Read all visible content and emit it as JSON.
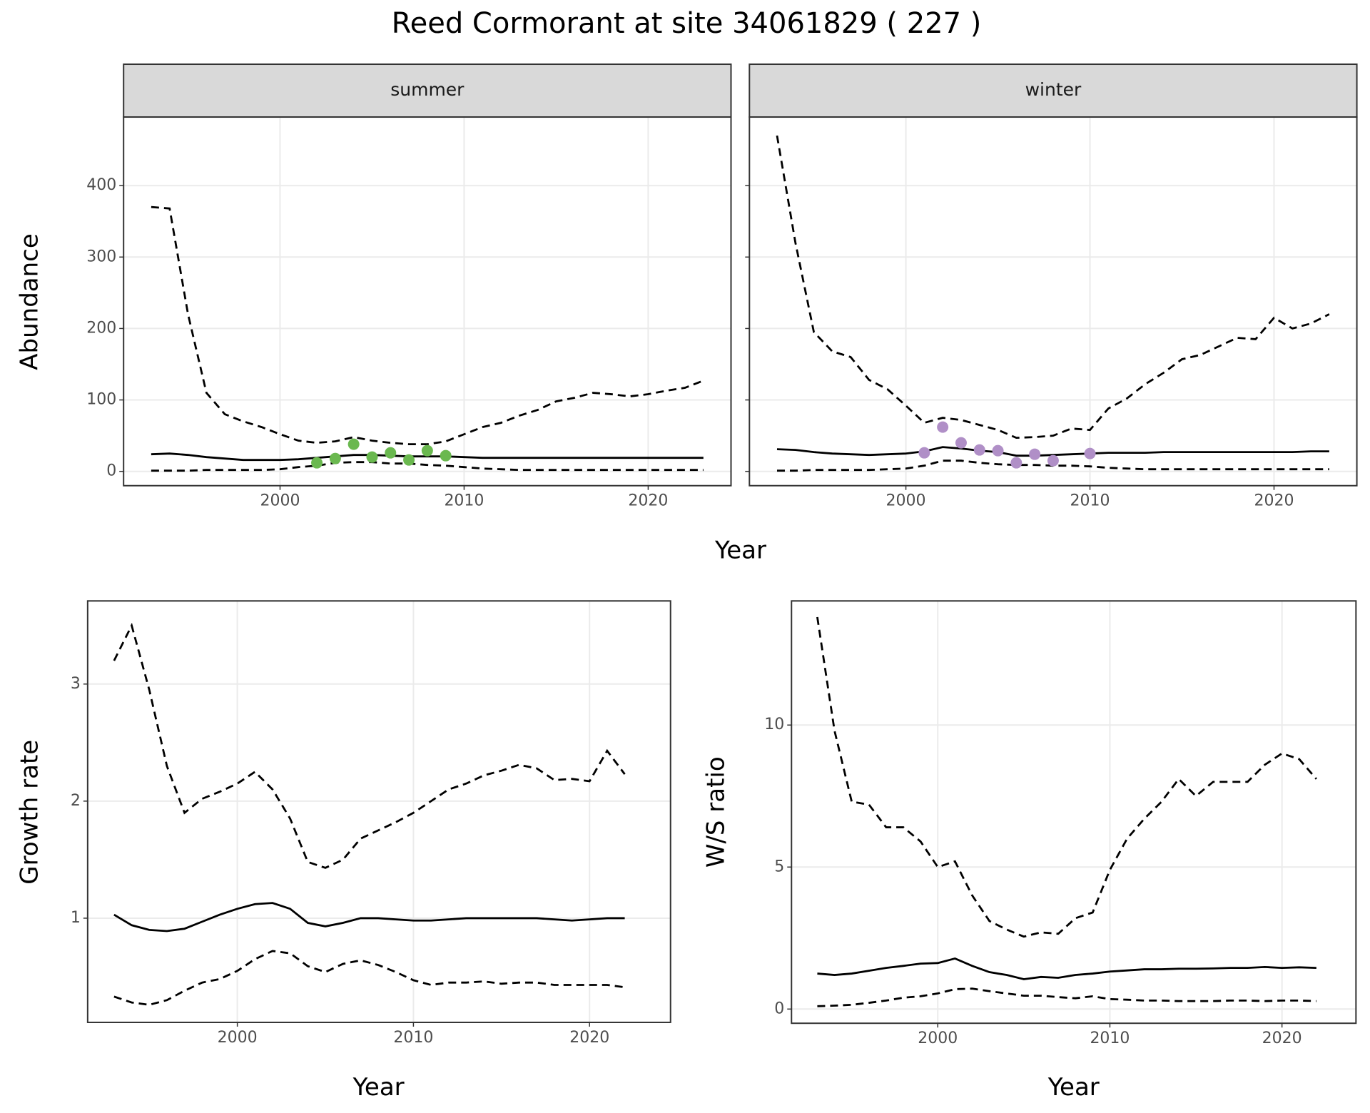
{
  "title": "Reed Cormorant at site 34061829 ( 227 )",
  "chart_data": [
    {
      "type": "line",
      "strip": "summer",
      "ylabel": "Abundance",
      "xlabel": "Year",
      "grid": true,
      "xlim": [
        1991.5,
        2024.5
      ],
      "xticks": [
        2000,
        2010,
        2020
      ],
      "ylim": [
        -20,
        496
      ],
      "yticks": [
        0,
        100,
        200,
        300,
        400
      ],
      "x": [
        1993,
        1994,
        1995,
        1996,
        1997,
        1998,
        1999,
        2000,
        2001,
        2002,
        2003,
        2004,
        2005,
        2006,
        2007,
        2008,
        2009,
        2010,
        2011,
        2012,
        2013,
        2014,
        2015,
        2016,
        2017,
        2018,
        2019,
        2020,
        2021,
        2022,
        2023
      ],
      "series": [
        {
          "color": "#000000",
          "dashed": false,
          "values": [
            24,
            25,
            23,
            20,
            18,
            16,
            16,
            16,
            17,
            19,
            21,
            23,
            23,
            22,
            21,
            21,
            21,
            20,
            19,
            19,
            19,
            19,
            19,
            19,
            19,
            19,
            19,
            19,
            19,
            19,
            19
          ]
        },
        {
          "color": "#000000",
          "dashed": true,
          "values": [
            370,
            368,
            220,
            110,
            80,
            70,
            62,
            52,
            43,
            40,
            42,
            48,
            43,
            40,
            38,
            38,
            42,
            52,
            62,
            68,
            78,
            86,
            98,
            103,
            110,
            108,
            105,
            108,
            113,
            117,
            127
          ]
        },
        {
          "color": "#000000",
          "dashed": true,
          "values": [
            1,
            1,
            1,
            2,
            2,
            2,
            2,
            3,
            6,
            8,
            12,
            13,
            13,
            11,
            11,
            9,
            8,
            6,
            4,
            3,
            2,
            2,
            2,
            2,
            2,
            2,
            2,
            2,
            2,
            2,
            2
          ]
        }
      ],
      "points": {
        "color": "#6ab84f",
        "x": [
          2002,
          2003,
          2004,
          2005,
          2006,
          2007,
          2008,
          2009
        ],
        "values": [
          12,
          18,
          38,
          20,
          26,
          16,
          29,
          22
        ]
      }
    },
    {
      "type": "line",
      "strip": "winter",
      "grid": true,
      "ytick_labels": false,
      "xlim": [
        1991.5,
        2024.5
      ],
      "xticks": [
        2000,
        2010,
        2020
      ],
      "ylim": [
        -20,
        496
      ],
      "yticks": [
        0,
        100,
        200,
        300,
        400
      ],
      "x": [
        1993,
        1994,
        1995,
        1996,
        1997,
        1998,
        1999,
        2000,
        2001,
        2002,
        2003,
        2004,
        2005,
        2006,
        2007,
        2008,
        2009,
        2010,
        2011,
        2012,
        2013,
        2014,
        2015,
        2016,
        2017,
        2018,
        2019,
        2020,
        2021,
        2022,
        2023
      ],
      "series": [
        {
          "color": "#000000",
          "dashed": false,
          "values": [
            31,
            30,
            27,
            25,
            24,
            23,
            24,
            25,
            28,
            34,
            32,
            29,
            27,
            22,
            22,
            23,
            24,
            25,
            26,
            26,
            26,
            27,
            27,
            27,
            27,
            27,
            27,
            27,
            27,
            28,
            28
          ]
        },
        {
          "color": "#000000",
          "dashed": true,
          "values": [
            470,
            320,
            195,
            168,
            160,
            128,
            115,
            92,
            68,
            75,
            72,
            65,
            58,
            47,
            48,
            50,
            60,
            58,
            88,
            102,
            122,
            138,
            157,
            163,
            175,
            187,
            185,
            215,
            200,
            207,
            220
          ]
        },
        {
          "color": "#000000",
          "dashed": true,
          "values": [
            1,
            1,
            2,
            2,
            2,
            2,
            3,
            4,
            8,
            15,
            15,
            12,
            10,
            9,
            9,
            8,
            8,
            7,
            5,
            4,
            3,
            3,
            3,
            3,
            3,
            3,
            3,
            3,
            3,
            3,
            3
          ]
        }
      ],
      "points": {
        "color": "#b08fc7",
        "x": [
          2001,
          2002,
          2003,
          2004,
          2005,
          2006,
          2007,
          2008,
          2010
        ],
        "values": [
          26,
          62,
          40,
          30,
          29,
          12,
          24,
          15,
          25
        ]
      }
    },
    {
      "type": "line",
      "ylabel": "Growth rate",
      "xlabel": "Year",
      "grid": true,
      "xlim": [
        1991.5,
        2024.6
      ],
      "xticks": [
        2000,
        2010,
        2020
      ],
      "ylim": [
        0.11,
        3.71
      ],
      "yticks": [
        1,
        2,
        3
      ],
      "x": [
        1993,
        1994,
        1995,
        1996,
        1997,
        1998,
        1999,
        2000,
        2001,
        2002,
        2003,
        2004,
        2005,
        2006,
        2007,
        2008,
        2009,
        2010,
        2011,
        2012,
        2013,
        2014,
        2015,
        2016,
        2017,
        2018,
        2019,
        2020,
        2021,
        2022
      ],
      "series": [
        {
          "color": "#000000",
          "dashed": false,
          "values": [
            1.03,
            0.94,
            0.9,
            0.89,
            0.91,
            0.97,
            1.03,
            1.08,
            1.12,
            1.13,
            1.08,
            0.96,
            0.93,
            0.96,
            1.0,
            1.0,
            0.99,
            0.98,
            0.98,
            0.99,
            1.0,
            1.0,
            1.0,
            1.0,
            1.0,
            0.99,
            0.98,
            0.99,
            1.0,
            1.0
          ]
        },
        {
          "color": "#000000",
          "dashed": true,
          "values": [
            3.2,
            3.5,
            2.95,
            2.3,
            1.9,
            2.02,
            2.08,
            2.15,
            2.25,
            2.1,
            1.85,
            1.48,
            1.43,
            1.5,
            1.68,
            1.75,
            1.82,
            1.9,
            2.0,
            2.1,
            2.15,
            2.22,
            2.26,
            2.31,
            2.28,
            2.18,
            2.19,
            2.17,
            2.43,
            2.23
          ]
        },
        {
          "color": "#000000",
          "dashed": true,
          "values": [
            0.33,
            0.28,
            0.26,
            0.3,
            0.38,
            0.45,
            0.48,
            0.55,
            0.65,
            0.72,
            0.7,
            0.59,
            0.54,
            0.61,
            0.64,
            0.6,
            0.54,
            0.47,
            0.43,
            0.45,
            0.45,
            0.46,
            0.44,
            0.45,
            0.45,
            0.43,
            0.43,
            0.43,
            0.43,
            0.41
          ]
        }
      ]
    },
    {
      "type": "line",
      "ylabel": "W/S ratio",
      "xlabel": "Year",
      "grid": true,
      "xlim": [
        1991.5,
        2024.3
      ],
      "xticks": [
        2000,
        2010,
        2020
      ],
      "ylim": [
        -0.5,
        14.37
      ],
      "yticks": [
        0,
        5,
        10
      ],
      "x": [
        1993,
        1994,
        1995,
        1996,
        1997,
        1998,
        1999,
        2000,
        2001,
        2002,
        2003,
        2004,
        2005,
        2006,
        2007,
        2008,
        2009,
        2010,
        2011,
        2012,
        2013,
        2014,
        2015,
        2016,
        2017,
        2018,
        2019,
        2020,
        2021,
        2022
      ],
      "series": [
        {
          "color": "#000000",
          "dashed": false,
          "values": [
            1.25,
            1.2,
            1.25,
            1.35,
            1.45,
            1.52,
            1.6,
            1.62,
            1.78,
            1.52,
            1.3,
            1.2,
            1.05,
            1.13,
            1.1,
            1.2,
            1.25,
            1.32,
            1.36,
            1.4,
            1.4,
            1.42,
            1.42,
            1.43,
            1.45,
            1.45,
            1.48,
            1.45,
            1.47,
            1.45
          ]
        },
        {
          "color": "#000000",
          "dashed": true,
          "values": [
            13.8,
            9.8,
            7.3,
            7.2,
            6.4,
            6.4,
            5.9,
            5.0,
            5.2,
            4.0,
            3.1,
            2.8,
            2.55,
            2.7,
            2.65,
            3.2,
            3.4,
            4.9,
            6.0,
            6.7,
            7.3,
            8.1,
            7.5,
            8.0,
            8.0,
            8.0,
            8.6,
            9.0,
            8.8,
            8.1
          ]
        },
        {
          "color": "#000000",
          "dashed": true,
          "values": [
            0.1,
            0.12,
            0.15,
            0.22,
            0.3,
            0.4,
            0.45,
            0.55,
            0.7,
            0.72,
            0.63,
            0.55,
            0.47,
            0.47,
            0.42,
            0.38,
            0.45,
            0.35,
            0.33,
            0.3,
            0.3,
            0.28,
            0.28,
            0.28,
            0.3,
            0.3,
            0.28,
            0.3,
            0.3,
            0.28
          ]
        }
      ]
    }
  ]
}
